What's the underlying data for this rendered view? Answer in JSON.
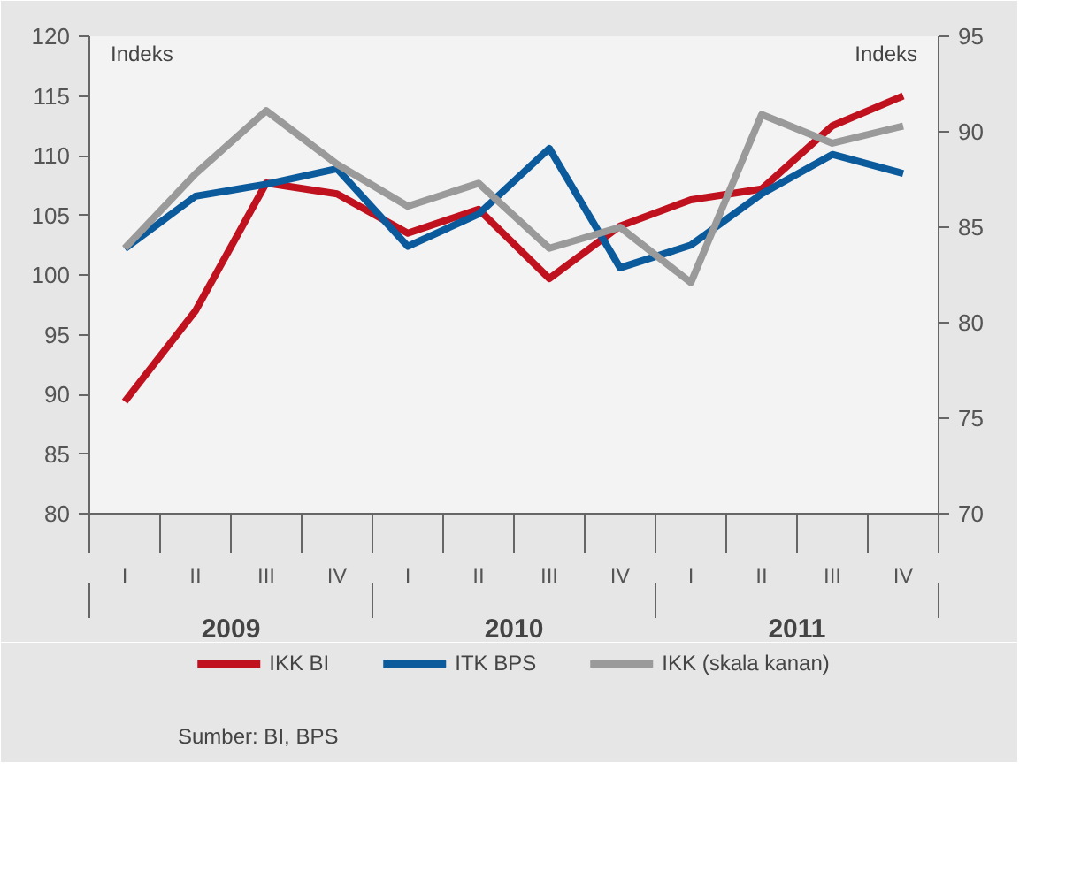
{
  "chart_data": {
    "type": "line",
    "categories": [
      "I",
      "II",
      "III",
      "IV",
      "I",
      "II",
      "III",
      "IV",
      "I",
      "II",
      "III",
      "IV"
    ],
    "ylabel": "Indeks",
    "y2label": "Indeks",
    "ylim": [
      80,
      120
    ],
    "yticks": [
      80,
      85,
      90,
      95,
      100,
      105,
      110,
      115,
      120
    ],
    "y2lim": [
      70,
      95
    ],
    "y2ticks": [
      70,
      75,
      80,
      85,
      90,
      95
    ],
    "series": [
      {
        "name": "IKK BI",
        "color": "#c0111f",
        "values": [
          89.4,
          97.0,
          107.7,
          106.8,
          103.5,
          105.5,
          99.7,
          104.1,
          106.3,
          107.2,
          112.5,
          115.0
        ]
      },
      {
        "name": "ITK BPS",
        "color": "#0a5a9c",
        "values": [
          102.2,
          106.6,
          107.6,
          108.9,
          102.4,
          105.1,
          110.6,
          100.6,
          102.5,
          106.8,
          110.1,
          108.5
        ]
      },
      {
        "name": "IKK (skala kanan)",
        "color": "#9a9a9a",
        "axis": "y2",
        "values": [
          83.9,
          87.8,
          91.1,
          88.3,
          86.1,
          87.3,
          83.9,
          85.0,
          82.1,
          90.9,
          89.4,
          90.3
        ]
      }
    ],
    "annotations": [
      "2009",
      "2010",
      "2011",
      "Sumber: BI, BPS"
    ],
    "legend": "bottom",
    "grid": false
  }
}
